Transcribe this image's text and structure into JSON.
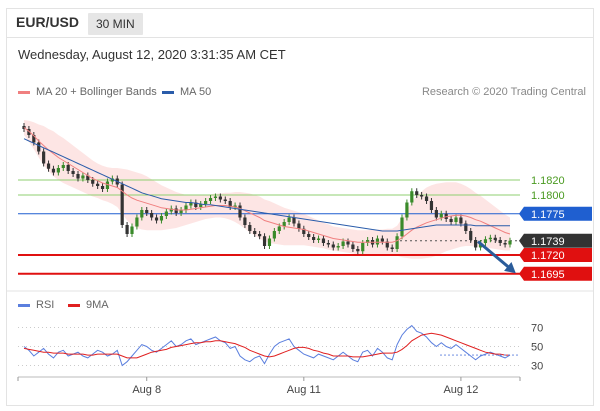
{
  "header": {
    "pair": "EUR/USD",
    "timeframe": "30 MIN",
    "datetime": "Wednesday, August 12, 2020 3:31:35 AM CET"
  },
  "legend": {
    "ma20_label": "MA 20 + Bollinger Bands",
    "ma50_label": "MA 50",
    "rsi_label": "RSI",
    "ma9_label": "9MA",
    "credit": "Research © 2020 Trading Central"
  },
  "colors": {
    "ma20": "#f08080",
    "ma50": "#2a5caa",
    "bands_fill": "#fde0df",
    "rsi": "#5b7fde",
    "ma9": "#e02020",
    "candle_up": "#3a8a2a",
    "candle_down": "#333333",
    "resistance_line": "#8fcf70",
    "pivot_line": "#1f5fd0",
    "support_line": "#e01010",
    "current_price_bg": "#333333",
    "arrow": "#2a5c9a"
  },
  "chart_data": {
    "type": "candlestick",
    "price_levels": [
      {
        "value": 1.182,
        "label": "1.1820",
        "kind": "resistance"
      },
      {
        "value": 1.18,
        "label": "1.1800",
        "kind": "resistance"
      },
      {
        "value": 1.1775,
        "label": "1.1775",
        "kind": "pivot"
      },
      {
        "value": 1.1739,
        "label": "1.1739",
        "kind": "last"
      },
      {
        "value": 1.172,
        "label": "1.1720",
        "kind": "support"
      },
      {
        "value": 1.1695,
        "label": "1.1695",
        "kind": "support"
      }
    ],
    "x_ticks": [
      "Aug 8",
      "Aug 11",
      "Aug 12"
    ],
    "close": [
      1.1888,
      1.188,
      1.187,
      1.1858,
      1.1842,
      1.1835,
      1.183,
      1.1836,
      1.184,
      1.1832,
      1.1828,
      1.1822,
      1.1826,
      1.182,
      1.1815,
      1.1812,
      1.1808,
      1.1818,
      1.1822,
      1.1814,
      1.176,
      1.1748,
      1.1758,
      1.177,
      1.178,
      1.1776,
      1.177,
      1.1766,
      1.1772,
      1.1778,
      1.1782,
      1.1776,
      1.178,
      1.1786,
      1.179,
      1.1784,
      1.1788,
      1.1792,
      1.1796,
      1.1798,
      1.1794,
      1.1792,
      1.1784,
      1.1786,
      1.177,
      1.176,
      1.1752,
      1.1748,
      1.1745,
      1.1732,
      1.1742,
      1.1752,
      1.1758,
      1.1764,
      1.177,
      1.1762,
      1.1755,
      1.1748,
      1.1744,
      1.174,
      1.1742,
      1.1736,
      1.1734,
      1.173,
      1.1732,
      1.1738,
      1.1734,
      1.1728,
      1.1725,
      1.1736,
      1.174,
      1.1734,
      1.1742,
      1.1738,
      1.173,
      1.1728,
      1.1745,
      1.177,
      1.179,
      1.1805,
      1.18,
      1.1798,
      1.1792,
      1.178,
      1.177,
      1.1775,
      1.1768,
      1.1764,
      1.177,
      1.1762,
      1.1752,
      1.174,
      1.173,
      1.1736,
      1.1741,
      1.1743,
      1.174,
      1.1736,
      1.1734,
      1.1739
    ],
    "ma20": [
      1.189,
      1.1885,
      1.1879,
      1.1872,
      1.1866,
      1.186,
      1.1855,
      1.185,
      1.1846,
      1.1842,
      1.1838,
      1.1834,
      1.183,
      1.1826,
      1.1822,
      1.1819,
      1.1816,
      1.1814,
      1.1812,
      1.181,
      1.1805,
      1.18,
      1.1796,
      1.1793,
      1.1791,
      1.1789,
      1.1787,
      1.1785,
      1.1783,
      1.1782,
      1.1781,
      1.178,
      1.178,
      1.178,
      1.1781,
      1.1782,
      1.1783,
      1.1784,
      1.1785,
      1.1786,
      1.1786,
      1.1786,
      1.1785,
      1.1784,
      1.1782,
      1.1779,
      1.1776,
      1.1773,
      1.177,
      1.1766,
      1.1764,
      1.1762,
      1.176,
      1.1758,
      1.1757,
      1.1756,
      1.1755,
      1.1754,
      1.1752,
      1.175,
      1.1748,
      1.1746,
      1.1744,
      1.1742,
      1.1741,
      1.174,
      1.1739,
      1.1738,
      1.1737,
      1.1737,
      1.1737,
      1.1737,
      1.1737,
      1.1737,
      1.1737,
      1.1737,
      1.1739,
      1.1743,
      1.1748,
      1.1753,
      1.1757,
      1.176,
      1.1763,
      1.1765,
      1.1767,
      1.1769,
      1.1771,
      1.1772,
      1.1773,
      1.1773,
      1.1772,
      1.177,
      1.1767,
      1.1765,
      1.1762,
      1.1759,
      1.1756,
      1.1753,
      1.175,
      1.1748
    ],
    "ma50": [
      1.1875,
      1.1872,
      1.1869,
      1.1866,
      1.1863,
      1.186,
      1.1857,
      1.1854,
      1.1851,
      1.1848,
      1.1845,
      1.1842,
      1.1839,
      1.1836,
      1.1833,
      1.183,
      1.1827,
      1.1824,
      1.1821,
      1.1818,
      1.1815,
      1.1812,
      1.1809,
      1.1806,
      1.1803,
      1.1801,
      1.1799,
      1.1797,
      1.1795,
      1.1794,
      1.1793,
      1.1792,
      1.1791,
      1.179,
      1.179,
      1.1789,
      1.1788,
      1.1787,
      1.1787,
      1.1786,
      1.1785,
      1.1784,
      1.1783,
      1.1782,
      1.1781,
      1.178,
      1.1779,
      1.1778,
      1.1777,
      1.1776,
      1.1775,
      1.1774,
      1.1773,
      1.1772,
      1.1771,
      1.177,
      1.1769,
      1.1768,
      1.1767,
      1.1766,
      1.1765,
      1.1764,
      1.1763,
      1.1762,
      1.1761,
      1.176,
      1.1759,
      1.1758,
      1.1757,
      1.1756,
      1.1755,
      1.1754,
      1.1753,
      1.1752,
      1.1752,
      1.1752,
      1.1752,
      1.1753,
      1.1754,
      1.1755,
      1.1756,
      1.1757,
      1.1758,
      1.1759,
      1.176,
      1.176,
      1.176,
      1.176,
      1.176,
      1.176,
      1.176,
      1.176,
      1.1759,
      1.1759,
      1.1759,
      1.1759,
      1.1759,
      1.1759,
      1.1759,
      1.1759
    ],
    "band_width": [
      0.001,
      0.0014,
      0.0018,
      0.0022,
      0.0026,
      0.0028,
      0.003,
      0.003,
      0.003,
      0.0029,
      0.0028,
      0.0027,
      0.0026,
      0.0025,
      0.0024,
      0.0023,
      0.0023,
      0.0023,
      0.0024,
      0.0026,
      0.003,
      0.0034,
      0.0036,
      0.0037,
      0.0037,
      0.0036,
      0.0034,
      0.0032,
      0.003,
      0.0028,
      0.0026,
      0.0024,
      0.0022,
      0.002,
      0.0019,
      0.0018,
      0.0017,
      0.0016,
      0.0016,
      0.0016,
      0.0016,
      0.0017,
      0.0018,
      0.002,
      0.0022,
      0.0024,
      0.0026,
      0.0027,
      0.0028,
      0.0028,
      0.0028,
      0.0027,
      0.0026,
      0.0025,
      0.0024,
      0.0023,
      0.0022,
      0.0021,
      0.002,
      0.0019,
      0.0018,
      0.0017,
      0.0017,
      0.0016,
      0.0016,
      0.0016,
      0.0016,
      0.0016,
      0.0016,
      0.0016,
      0.0016,
      0.0017,
      0.0017,
      0.0017,
      0.0018,
      0.0018,
      0.002,
      0.0026,
      0.0032,
      0.0038,
      0.0042,
      0.0045,
      0.0047,
      0.0048,
      0.0048,
      0.0047,
      0.0046,
      0.0045,
      0.0044,
      0.0042,
      0.004,
      0.0038,
      0.0036,
      0.0034,
      0.0032,
      0.003,
      0.0028,
      0.0026,
      0.0024,
      0.0022
    ],
    "rsi": {
      "ticks": [
        70,
        50,
        30
      ],
      "range": [
        20,
        80
      ],
      "values": [
        50,
        46,
        40,
        44,
        48,
        42,
        38,
        44,
        46,
        40,
        42,
        44,
        40,
        38,
        42,
        46,
        44,
        40,
        42,
        46,
        30,
        34,
        40,
        46,
        52,
        50,
        46,
        44,
        48,
        52,
        56,
        50,
        52,
        56,
        58,
        52,
        54,
        56,
        58,
        60,
        56,
        54,
        48,
        50,
        40,
        36,
        34,
        38,
        40,
        32,
        42,
        50,
        54,
        56,
        58,
        50,
        46,
        42,
        40,
        38,
        42,
        40,
        38,
        36,
        40,
        44,
        40,
        36,
        34,
        44,
        46,
        40,
        48,
        44,
        38,
        36,
        52,
        62,
        68,
        72,
        66,
        64,
        60,
        54,
        50,
        54,
        50,
        48,
        52,
        48,
        44,
        40,
        36,
        40,
        42,
        44,
        42,
        40,
        38,
        41
      ],
      "ma9": [
        48,
        47,
        46,
        45,
        44,
        44,
        43,
        43,
        43,
        42,
        42,
        42,
        42,
        41,
        41,
        42,
        42,
        42,
        42,
        42,
        40,
        38,
        38,
        38,
        40,
        42,
        44,
        45,
        46,
        47,
        49,
        50,
        51,
        52,
        53,
        54,
        54,
        55,
        55,
        56,
        56,
        55,
        54,
        53,
        51,
        49,
        46,
        44,
        42,
        40,
        39,
        40,
        42,
        44,
        46,
        48,
        49,
        49,
        48,
        46,
        45,
        43,
        42,
        40,
        40,
        40,
        40,
        39,
        39,
        39,
        40,
        41,
        42,
        43,
        43,
        43,
        44,
        47,
        51,
        56,
        59,
        62,
        63,
        64,
        63,
        62,
        60,
        58,
        56,
        54,
        52,
        50,
        48,
        46,
        44,
        43,
        42,
        42,
        41,
        41
      ]
    }
  }
}
